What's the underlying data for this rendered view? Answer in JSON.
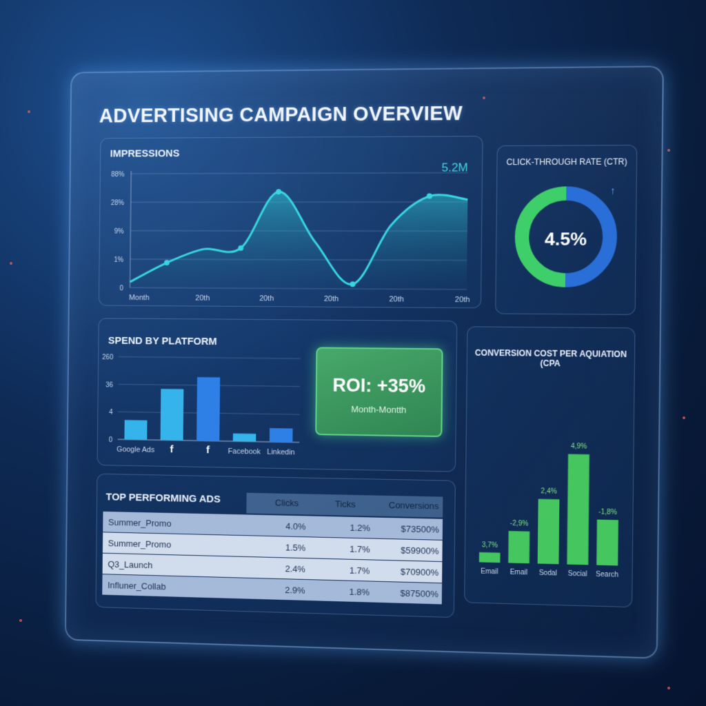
{
  "title": "ADVERTISING CAMPAIGN OVERVIEW",
  "impressions": {
    "title": "IMPRESSIONS",
    "highlight": "5.2M",
    "y_ticks": [
      "88%",
      "28%",
      "9%",
      "1%",
      "0"
    ],
    "x_ticks": [
      "Month",
      "20th",
      "20th",
      "20th",
      "20th",
      "20th"
    ]
  },
  "ctr": {
    "title": "CLICK-THROUGH RATE (CTR)",
    "value": "4.5%",
    "percent": 50,
    "colors": {
      "green": "#3ecf6a",
      "blue": "#2a6fd8"
    }
  },
  "spend": {
    "title": "SPEND BY PLATFORM",
    "y_ticks": [
      "260",
      "36",
      "4",
      "0"
    ],
    "platforms": [
      "Google Ads",
      "f",
      "f",
      "Facebook",
      "Linkedin"
    ]
  },
  "roi": {
    "value": "ROI: +35%",
    "subtitle": "Month-Montth"
  },
  "cpa": {
    "title": "CONVERSION COST PER AQUIATION (CPA",
    "labels": [
      "3,7%",
      "-2,9%",
      "2,4%",
      "4,9%",
      "-1,8%"
    ],
    "categories": [
      "Email",
      "Email",
      "Sodal",
      "Social",
      "Search"
    ]
  },
  "top_ads": {
    "title": "TOP PERFORMING ADS",
    "columns": [
      "Clicks",
      "Ticks",
      "Conversions"
    ],
    "rows": [
      {
        "name": "Summer_Promo",
        "clicks": "4.0%",
        "ticks": "1.2%",
        "conversions": "$73500%"
      },
      {
        "name": "Summer_Promo",
        "clicks": "1.5%",
        "ticks": "1.7%",
        "conversions": "$59900%"
      },
      {
        "name": "Q3_Launch",
        "clicks": "2.4%",
        "ticks": "1.7%",
        "conversions": "$70900%"
      },
      {
        "name": "Influner_Collab",
        "clicks": "2.9%",
        "ticks": "1.8%",
        "conversions": "$87500%"
      }
    ]
  },
  "chart_data": [
    {
      "type": "area",
      "title": "IMPRESSIONS",
      "x": [
        0,
        1,
        2,
        3,
        4,
        5,
        6,
        7,
        8,
        9
      ],
      "values": [
        0.5,
        2.2,
        3.4,
        3.5,
        8.4,
        4.0,
        0.4,
        5.5,
        8.0,
        7.7
      ],
      "annotation": "5.2M",
      "ylim": [
        0,
        10
      ],
      "grid": true
    },
    {
      "type": "pie",
      "title": "CLICK-THROUGH RATE (CTR)",
      "slices": [
        50,
        50
      ],
      "center_label": "4.5%"
    },
    {
      "type": "bar",
      "title": "SPEND BY PLATFORM",
      "categories": [
        "Google Ads",
        "f",
        "f",
        "Facebook",
        "Linkedin"
      ],
      "values": [
        40,
        105,
        130,
        16,
        28
      ],
      "ylim": [
        0,
        170
      ],
      "grid": true
    },
    {
      "type": "bar",
      "title": "CONVERSION COST PER AQUIATION (CPA",
      "categories": [
        "Email",
        "Email",
        "Sodal",
        "Social",
        "Search"
      ],
      "values": [
        15,
        48,
        97,
        165,
        68
      ],
      "ylim": [
        0,
        180
      ]
    }
  ]
}
